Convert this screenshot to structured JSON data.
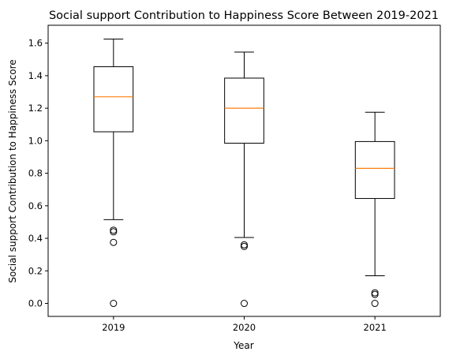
{
  "chart_data": {
    "type": "boxplot",
    "title": "Social support Contribution to Happiness Score Between 2019-2021",
    "xlabel": "Year",
    "ylabel": "Social support Contribution to Happiness Score",
    "categories": [
      "2019",
      "2020",
      "2021"
    ],
    "ylim": [
      -0.08,
      1.71
    ],
    "yticks": [
      0.0,
      0.2,
      0.4,
      0.6,
      0.8,
      1.0,
      1.2,
      1.4,
      1.6
    ],
    "yticks_labels": [
      "0.0",
      "0.2",
      "0.4",
      "0.6",
      "0.8",
      "1.0",
      "1.2",
      "1.4",
      "1.6"
    ],
    "grid": false,
    "colors": {
      "box": "#000000",
      "median": "#ff7f0e",
      "outlier": "#000000"
    },
    "boxes": [
      {
        "category": "2019",
        "whisker_low": 0.515,
        "q1": 1.055,
        "median": 1.27,
        "q3": 1.455,
        "whisker_high": 1.625,
        "outliers": [
          0.45,
          0.44,
          0.375,
          0.0
        ]
      },
      {
        "category": "2020",
        "whisker_low": 0.405,
        "q1": 0.985,
        "median": 1.2,
        "q3": 1.385,
        "whisker_high": 1.545,
        "outliers": [
          0.36,
          0.35,
          0.0
        ]
      },
      {
        "category": "2021",
        "whisker_low": 0.17,
        "q1": 0.645,
        "median": 0.83,
        "q3": 0.995,
        "whisker_high": 1.175,
        "outliers": [
          0.065,
          0.055,
          0.0
        ]
      }
    ]
  }
}
